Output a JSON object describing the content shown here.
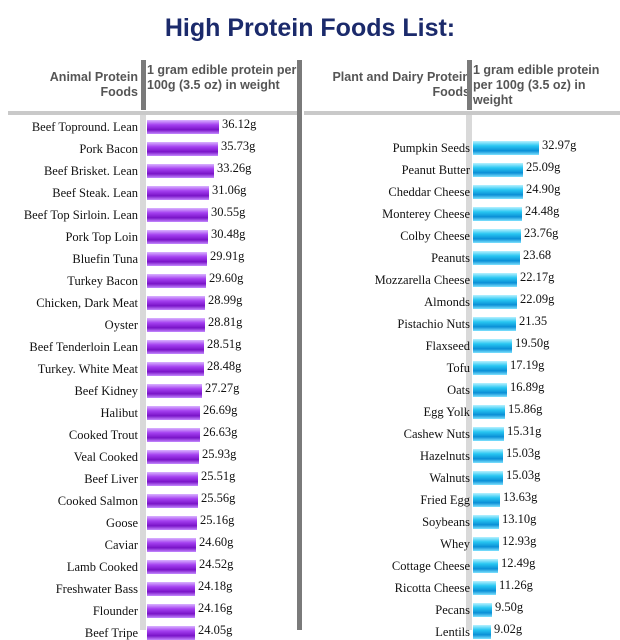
{
  "title": "High Protein Foods List:",
  "headers": {
    "left_category": "Animal Protein Foods",
    "left_value": "1 gram edible protein per 100g (3.5 oz) in weight",
    "right_category": "Plant and Dairy Protein Foods",
    "right_value": "1 gram edible protein per 100g (3.5 oz) in weight"
  },
  "colors": {
    "title": "#1b2a6b",
    "left_bars": "#8a20d8",
    "right_bars": "#0aa6e6"
  },
  "chart_data": [
    {
      "type": "bar",
      "orientation": "horizontal",
      "xlim": [
        0,
        40
      ],
      "categories": [
        "Beef Topround. Lean",
        "Pork Bacon",
        "Beef Brisket. Lean",
        "Beef Steak. Lean",
        "Beef Top Sirloin. Lean",
        "Pork Top Loin",
        "Bluefin Tuna",
        "Turkey Bacon",
        "Chicken, Dark Meat",
        "Oyster",
        "Beef Tenderloin  Lean",
        "Turkey. White Meat",
        "Beef Kidney",
        "Halibut",
        "Cooked Trout",
        "Veal Cooked",
        "Beef Liver",
        "Cooked Salmon",
        "Goose",
        "Caviar",
        "Lamb Cooked",
        "Freshwater Bass",
        "Flounder",
        "Beef Tripe"
      ],
      "values": [
        36.12,
        35.73,
        33.26,
        31.06,
        30.55,
        30.48,
        29.91,
        29.6,
        28.99,
        28.81,
        28.51,
        28.48,
        27.27,
        26.69,
        26.63,
        25.93,
        25.51,
        25.56,
        25.16,
        24.6,
        24.52,
        24.18,
        24.16,
        24.05
      ],
      "value_labels": [
        "36.12g",
        "35.73g",
        "33.26g",
        "31.06g",
        "30.55g",
        "30.48g",
        "29.91g",
        "29.60g",
        "28.99g",
        "28.81g",
        "28.51g",
        "28.48g",
        "27.27g",
        "26.69g",
        "26.63g",
        "25.93g",
        "25.51g",
        "25.56g",
        "25.16g",
        "24.60g",
        "24.52g",
        "24.18g",
        "24.16g",
        "24.05g"
      ]
    },
    {
      "type": "bar",
      "orientation": "horizontal",
      "xlim": [
        0,
        40
      ],
      "categories": [
        "Pumpkin Seeds",
        "Peanut Butter",
        "Cheddar Cheese",
        "Monterey Cheese",
        "Colby Cheese",
        "Peanuts",
        "Mozzarella Cheese",
        "Almonds",
        "Pistachio Nuts",
        "Flaxseed",
        "Tofu",
        "Oats",
        "Egg Yolk",
        "Cashew Nuts",
        "Hazelnuts",
        "Walnuts",
        "Fried Egg",
        "Soybeans",
        "Whey",
        "Cottage Cheese",
        "Ricotta Cheese",
        "Pecans",
        "Lentils"
      ],
      "values": [
        32.97,
        25.09,
        24.9,
        24.48,
        23.76,
        23.68,
        22.17,
        22.09,
        21.35,
        19.5,
        17.19,
        16.89,
        15.86,
        15.31,
        15.03,
        15.03,
        13.63,
        13.1,
        12.93,
        12.49,
        11.26,
        9.5,
        9.02
      ],
      "value_labels": [
        "32.97g",
        "25.09g",
        "24.90g",
        "24.48g",
        "23.76g",
        "23.68",
        "22.17g",
        "22.09g",
        "21.35",
        "19.50g",
        "17.19g",
        "16.89g",
        "15.86g",
        "15.31g",
        "15.03g",
        "15.03g",
        "13.63g",
        "13.10g",
        "12.93g",
        "12.49g",
        "11.26g",
        "9.50g",
        "9.02g"
      ]
    }
  ]
}
